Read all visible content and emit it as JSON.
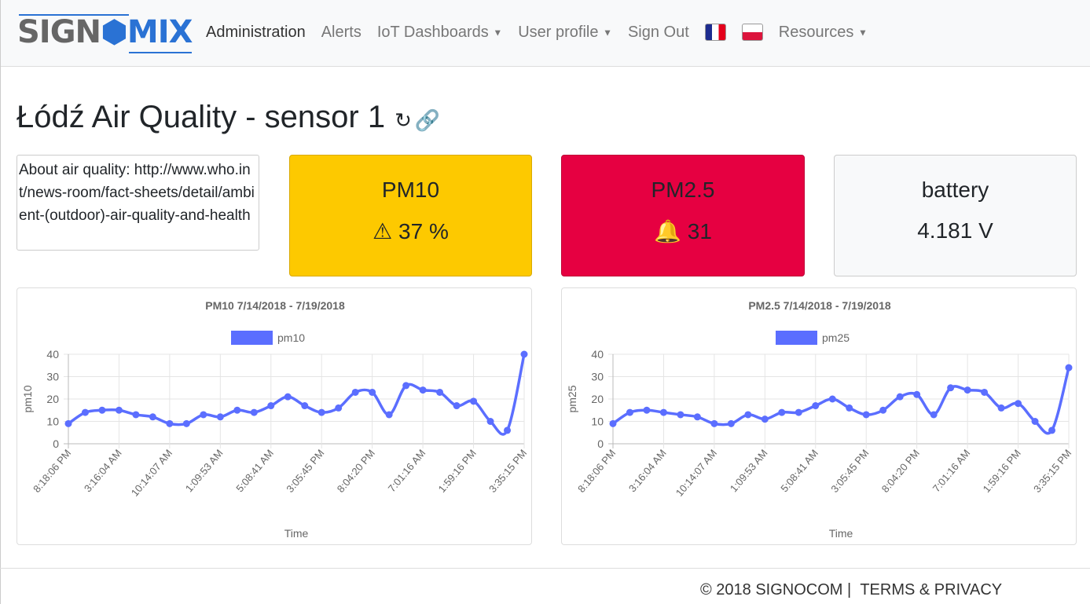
{
  "nav": {
    "logo_left": "SIGN",
    "logo_right": "MIX",
    "items": [
      "Administration",
      "Alerts",
      "IoT Dashboards",
      "User profile",
      "Sign Out",
      "Resources"
    ]
  },
  "page": {
    "title": "Łódź Air Quality - sensor 1"
  },
  "about": {
    "text": "About air quality: http://www.who.int/news-room/fact-sheets/detail/ambient-(outdoor)-air-quality-and-health"
  },
  "tiles": [
    {
      "title": "PM10",
      "value": "37 %",
      "icon": "warning-icon",
      "color": "#fdc900"
    },
    {
      "title": "PM2.5",
      "value": "31",
      "icon": "bell-icon",
      "color": "#e60041"
    },
    {
      "title": "battery",
      "value": "4.181 V",
      "color": "#f8f9fa"
    }
  ],
  "footer": {
    "copyright": "© 2018 SIGNOCOM |",
    "terms": "TERMS & PRIVACY"
  },
  "chart_data": [
    {
      "type": "line",
      "title": "PM10 7/14/2018 - 7/19/2018",
      "legend": "pm10",
      "ylabel": "pm10",
      "xlabel": "Time",
      "ylim": [
        0,
        40
      ],
      "yticks": [
        0,
        10,
        20,
        30,
        40
      ],
      "color": "#5b6eff",
      "xticks": [
        "8:18:06 PM",
        "3:16:04 AM",
        "10:14:07 AM",
        "1:09:53 AM",
        "5:08:41 AM",
        "3:05:45 PM",
        "8:04:20 PM",
        "7:01:16 AM",
        "1:59:16 PM",
        "3:35:15 PM"
      ],
      "values": [
        9,
        14,
        15,
        15,
        13,
        12,
        9,
        9,
        13,
        12,
        15,
        14,
        17,
        21,
        17,
        14,
        16,
        23,
        23,
        13,
        26,
        24,
        23,
        17,
        19,
        10,
        6,
        40
      ]
    },
    {
      "type": "line",
      "title": "PM2.5 7/14/2018 - 7/19/2018",
      "legend": "pm25",
      "ylabel": "pm25",
      "xlabel": "Time",
      "ylim": [
        0,
        40
      ],
      "yticks": [
        0,
        10,
        20,
        30,
        40
      ],
      "color": "#5b6eff",
      "xticks": [
        "8:18:06 PM",
        "3:16:04 AM",
        "10:14:07 AM",
        "1:09:53 AM",
        "5:08:41 AM",
        "3:05:45 PM",
        "8:04:20 PM",
        "7:01:16 AM",
        "1:59:16 PM",
        "3:35:15 PM"
      ],
      "values": [
        9,
        14,
        15,
        14,
        13,
        12,
        9,
        9,
        13,
        11,
        14,
        14,
        17,
        20,
        16,
        13,
        15,
        21,
        22,
        13,
        25,
        24,
        23,
        16,
        18,
        10,
        6,
        34
      ]
    }
  ]
}
